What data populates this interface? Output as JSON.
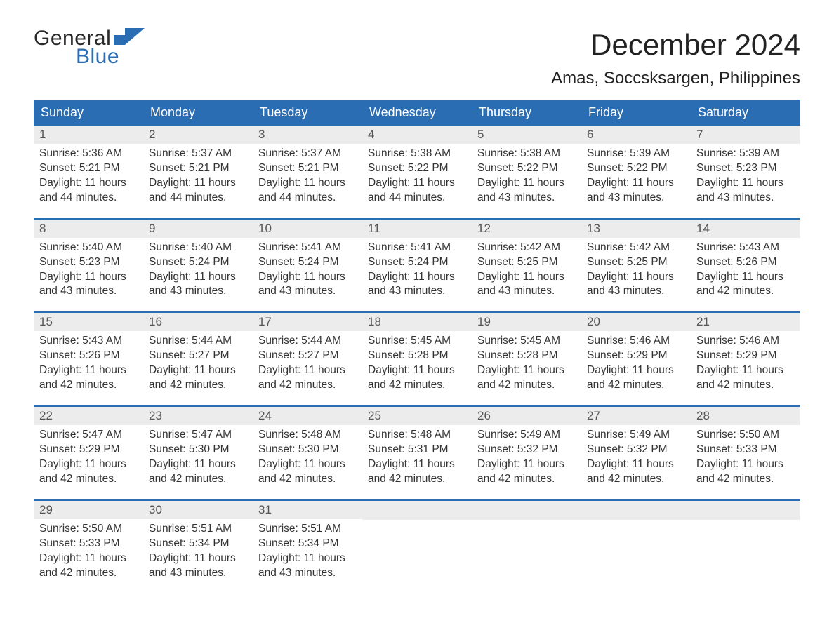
{
  "logo": {
    "top": "General",
    "bottom": "Blue",
    "flag_color": "#2a6db3",
    "text_gray": "#2a2a2a"
  },
  "title": "December 2024",
  "location": "Amas, Soccsksargen, Philippines",
  "colors": {
    "header_bg": "#2a6db3",
    "header_text": "#ffffff",
    "daynum_bg": "#ececec",
    "daynum_text": "#555555",
    "body_text": "#333333",
    "row_border": "#2a6db3",
    "page_bg": "#ffffff"
  },
  "fonts": {
    "title_pt": 42,
    "location_pt": 24,
    "weekday_pt": 18,
    "daynum_pt": 17,
    "body_pt": 15.5
  },
  "weekdays": [
    "Sunday",
    "Monday",
    "Tuesday",
    "Wednesday",
    "Thursday",
    "Friday",
    "Saturday"
  ],
  "weeks": [
    [
      {
        "n": "1",
        "sunrise": "Sunrise: 5:36 AM",
        "sunset": "Sunset: 5:21 PM",
        "d1": "Daylight: 11 hours",
        "d2": "and 44 minutes."
      },
      {
        "n": "2",
        "sunrise": "Sunrise: 5:37 AM",
        "sunset": "Sunset: 5:21 PM",
        "d1": "Daylight: 11 hours",
        "d2": "and 44 minutes."
      },
      {
        "n": "3",
        "sunrise": "Sunrise: 5:37 AM",
        "sunset": "Sunset: 5:21 PM",
        "d1": "Daylight: 11 hours",
        "d2": "and 44 minutes."
      },
      {
        "n": "4",
        "sunrise": "Sunrise: 5:38 AM",
        "sunset": "Sunset: 5:22 PM",
        "d1": "Daylight: 11 hours",
        "d2": "and 44 minutes."
      },
      {
        "n": "5",
        "sunrise": "Sunrise: 5:38 AM",
        "sunset": "Sunset: 5:22 PM",
        "d1": "Daylight: 11 hours",
        "d2": "and 43 minutes."
      },
      {
        "n": "6",
        "sunrise": "Sunrise: 5:39 AM",
        "sunset": "Sunset: 5:22 PM",
        "d1": "Daylight: 11 hours",
        "d2": "and 43 minutes."
      },
      {
        "n": "7",
        "sunrise": "Sunrise: 5:39 AM",
        "sunset": "Sunset: 5:23 PM",
        "d1": "Daylight: 11 hours",
        "d2": "and 43 minutes."
      }
    ],
    [
      {
        "n": "8",
        "sunrise": "Sunrise: 5:40 AM",
        "sunset": "Sunset: 5:23 PM",
        "d1": "Daylight: 11 hours",
        "d2": "and 43 minutes."
      },
      {
        "n": "9",
        "sunrise": "Sunrise: 5:40 AM",
        "sunset": "Sunset: 5:24 PM",
        "d1": "Daylight: 11 hours",
        "d2": "and 43 minutes."
      },
      {
        "n": "10",
        "sunrise": "Sunrise: 5:41 AM",
        "sunset": "Sunset: 5:24 PM",
        "d1": "Daylight: 11 hours",
        "d2": "and 43 minutes."
      },
      {
        "n": "11",
        "sunrise": "Sunrise: 5:41 AM",
        "sunset": "Sunset: 5:24 PM",
        "d1": "Daylight: 11 hours",
        "d2": "and 43 minutes."
      },
      {
        "n": "12",
        "sunrise": "Sunrise: 5:42 AM",
        "sunset": "Sunset: 5:25 PM",
        "d1": "Daylight: 11 hours",
        "d2": "and 43 minutes."
      },
      {
        "n": "13",
        "sunrise": "Sunrise: 5:42 AM",
        "sunset": "Sunset: 5:25 PM",
        "d1": "Daylight: 11 hours",
        "d2": "and 43 minutes."
      },
      {
        "n": "14",
        "sunrise": "Sunrise: 5:43 AM",
        "sunset": "Sunset: 5:26 PM",
        "d1": "Daylight: 11 hours",
        "d2": "and 42 minutes."
      }
    ],
    [
      {
        "n": "15",
        "sunrise": "Sunrise: 5:43 AM",
        "sunset": "Sunset: 5:26 PM",
        "d1": "Daylight: 11 hours",
        "d2": "and 42 minutes."
      },
      {
        "n": "16",
        "sunrise": "Sunrise: 5:44 AM",
        "sunset": "Sunset: 5:27 PM",
        "d1": "Daylight: 11 hours",
        "d2": "and 42 minutes."
      },
      {
        "n": "17",
        "sunrise": "Sunrise: 5:44 AM",
        "sunset": "Sunset: 5:27 PM",
        "d1": "Daylight: 11 hours",
        "d2": "and 42 minutes."
      },
      {
        "n": "18",
        "sunrise": "Sunrise: 5:45 AM",
        "sunset": "Sunset: 5:28 PM",
        "d1": "Daylight: 11 hours",
        "d2": "and 42 minutes."
      },
      {
        "n": "19",
        "sunrise": "Sunrise: 5:45 AM",
        "sunset": "Sunset: 5:28 PM",
        "d1": "Daylight: 11 hours",
        "d2": "and 42 minutes."
      },
      {
        "n": "20",
        "sunrise": "Sunrise: 5:46 AM",
        "sunset": "Sunset: 5:29 PM",
        "d1": "Daylight: 11 hours",
        "d2": "and 42 minutes."
      },
      {
        "n": "21",
        "sunrise": "Sunrise: 5:46 AM",
        "sunset": "Sunset: 5:29 PM",
        "d1": "Daylight: 11 hours",
        "d2": "and 42 minutes."
      }
    ],
    [
      {
        "n": "22",
        "sunrise": "Sunrise: 5:47 AM",
        "sunset": "Sunset: 5:29 PM",
        "d1": "Daylight: 11 hours",
        "d2": "and 42 minutes."
      },
      {
        "n": "23",
        "sunrise": "Sunrise: 5:47 AM",
        "sunset": "Sunset: 5:30 PM",
        "d1": "Daylight: 11 hours",
        "d2": "and 42 minutes."
      },
      {
        "n": "24",
        "sunrise": "Sunrise: 5:48 AM",
        "sunset": "Sunset: 5:30 PM",
        "d1": "Daylight: 11 hours",
        "d2": "and 42 minutes."
      },
      {
        "n": "25",
        "sunrise": "Sunrise: 5:48 AM",
        "sunset": "Sunset: 5:31 PM",
        "d1": "Daylight: 11 hours",
        "d2": "and 42 minutes."
      },
      {
        "n": "26",
        "sunrise": "Sunrise: 5:49 AM",
        "sunset": "Sunset: 5:32 PM",
        "d1": "Daylight: 11 hours",
        "d2": "and 42 minutes."
      },
      {
        "n": "27",
        "sunrise": "Sunrise: 5:49 AM",
        "sunset": "Sunset: 5:32 PM",
        "d1": "Daylight: 11 hours",
        "d2": "and 42 minutes."
      },
      {
        "n": "28",
        "sunrise": "Sunrise: 5:50 AM",
        "sunset": "Sunset: 5:33 PM",
        "d1": "Daylight: 11 hours",
        "d2": "and 42 minutes."
      }
    ],
    [
      {
        "n": "29",
        "sunrise": "Sunrise: 5:50 AM",
        "sunset": "Sunset: 5:33 PM",
        "d1": "Daylight: 11 hours",
        "d2": "and 42 minutes."
      },
      {
        "n": "30",
        "sunrise": "Sunrise: 5:51 AM",
        "sunset": "Sunset: 5:34 PM",
        "d1": "Daylight: 11 hours",
        "d2": "and 43 minutes."
      },
      {
        "n": "31",
        "sunrise": "Sunrise: 5:51 AM",
        "sunset": "Sunset: 5:34 PM",
        "d1": "Daylight: 11 hours",
        "d2": "and 43 minutes."
      },
      null,
      null,
      null,
      null
    ]
  ]
}
